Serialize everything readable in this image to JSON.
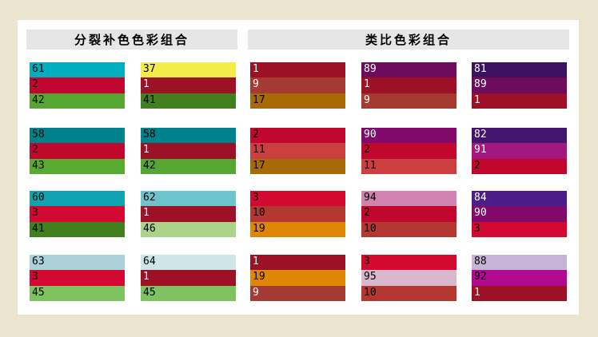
{
  "page": {
    "background_color": "#EBE5D0",
    "panel_color": "#FFFFFF",
    "header_bar_color": "#E6E6E6"
  },
  "sections": [
    {
      "title": "分裂补色色彩组合",
      "columns": 2,
      "groups": [
        {
          "swatches": [
            {
              "num": "61",
              "color": "#00AEC0",
              "text_color": "#000000"
            },
            {
              "num": "2",
              "color": "#C2072E",
              "text_color": "#000000"
            },
            {
              "num": "42",
              "color": "#55A632",
              "text_color": "#000000"
            }
          ]
        },
        {
          "swatches": [
            {
              "num": "37",
              "color": "#F4EC48",
              "text_color": "#000000"
            },
            {
              "num": "1",
              "color": "#9D1127",
              "text_color": "#FFFFFF"
            },
            {
              "num": "41",
              "color": "#41801F",
              "text_color": "#000000"
            }
          ]
        },
        {
          "swatches": [
            {
              "num": "58",
              "color": "#00828C",
              "text_color": "#000000"
            },
            {
              "num": "2",
              "color": "#C2072E",
              "text_color": "#000000"
            },
            {
              "num": "43",
              "color": "#58AB30",
              "text_color": "#000000"
            }
          ]
        },
        {
          "swatches": [
            {
              "num": "58",
              "color": "#00828C",
              "text_color": "#000000"
            },
            {
              "num": "1",
              "color": "#9D1127",
              "text_color": "#FFFFFF"
            },
            {
              "num": "42",
              "color": "#55A632",
              "text_color": "#000000"
            }
          ]
        },
        {
          "swatches": [
            {
              "num": "60",
              "color": "#12A3B2",
              "text_color": "#000000"
            },
            {
              "num": "3",
              "color": "#D40931",
              "text_color": "#000000"
            },
            {
              "num": "41",
              "color": "#41801F",
              "text_color": "#000000"
            }
          ]
        },
        {
          "swatches": [
            {
              "num": "62",
              "color": "#6EC4CC",
              "text_color": "#000000"
            },
            {
              "num": "1",
              "color": "#9D1127",
              "text_color": "#FFFFFF"
            },
            {
              "num": "46",
              "color": "#ABD489",
              "text_color": "#000000"
            }
          ]
        },
        {
          "swatches": [
            {
              "num": "63",
              "color": "#AAD2D8",
              "text_color": "#000000"
            },
            {
              "num": "3",
              "color": "#D40931",
              "text_color": "#000000"
            },
            {
              "num": "45",
              "color": "#7EC35F",
              "text_color": "#000000"
            }
          ]
        },
        {
          "swatches": [
            {
              "num": "64",
              "color": "#D0E5E8",
              "text_color": "#000000"
            },
            {
              "num": "1",
              "color": "#9D1127",
              "text_color": "#FFFFFF"
            },
            {
              "num": "45",
              "color": "#7EC35F",
              "text_color": "#000000"
            }
          ]
        }
      ]
    },
    {
      "title": "类比色彩组合",
      "columns": 3,
      "groups": [
        {
          "swatches": [
            {
              "num": "1",
              "color": "#9D1127",
              "text_color": "#FFFFFF"
            },
            {
              "num": "9",
              "color": "#A43A31",
              "text_color": "#FFFFFF"
            },
            {
              "num": "17",
              "color": "#A76A07",
              "text_color": "#000000"
            }
          ]
        },
        {
          "swatches": [
            {
              "num": "89",
              "color": "#6D0B5C",
              "text_color": "#FFFFFF"
            },
            {
              "num": "1",
              "color": "#9D1127",
              "text_color": "#FFFFFF"
            },
            {
              "num": "9",
              "color": "#A43A31",
              "text_color": "#FFFFFF"
            }
          ]
        },
        {
          "swatches": [
            {
              "num": "81",
              "color": "#3B1161",
              "text_color": "#FFFFFF"
            },
            {
              "num": "89",
              "color": "#6D0B5C",
              "text_color": "#FFFFFF"
            },
            {
              "num": "1",
              "color": "#9D1127",
              "text_color": "#FFFFFF"
            }
          ]
        },
        {
          "swatches": [
            {
              "num": "2",
              "color": "#C2072E",
              "text_color": "#000000"
            },
            {
              "num": "11",
              "color": "#CC3F41",
              "text_color": "#000000"
            },
            {
              "num": "17",
              "color": "#A76A07",
              "text_color": "#000000"
            }
          ]
        },
        {
          "swatches": [
            {
              "num": "90",
              "color": "#82096C",
              "text_color": "#FFFFFF"
            },
            {
              "num": "2",
              "color": "#C2072E",
              "text_color": "#000000"
            },
            {
              "num": "11",
              "color": "#CC3F41",
              "text_color": "#000000"
            }
          ]
        },
        {
          "swatches": [
            {
              "num": "82",
              "color": "#43156E",
              "text_color": "#FFFFFF"
            },
            {
              "num": "91",
              "color": "#A21880",
              "text_color": "#FFFFFF"
            },
            {
              "num": "2",
              "color": "#C2072E",
              "text_color": "#000000"
            }
          ]
        },
        {
          "swatches": [
            {
              "num": "3",
              "color": "#D40931",
              "text_color": "#000000"
            },
            {
              "num": "10",
              "color": "#B43731",
              "text_color": "#000000"
            },
            {
              "num": "19",
              "color": "#DF8607",
              "text_color": "#000000"
            }
          ]
        },
        {
          "swatches": [
            {
              "num": "94",
              "color": "#D083AE",
              "text_color": "#000000"
            },
            {
              "num": "2",
              "color": "#C2072E",
              "text_color": "#000000"
            },
            {
              "num": "10",
              "color": "#B43731",
              "text_color": "#000000"
            }
          ]
        },
        {
          "swatches": [
            {
              "num": "84",
              "color": "#4C1D88",
              "text_color": "#FFFFFF"
            },
            {
              "num": "90",
              "color": "#82096C",
              "text_color": "#FFFFFF"
            },
            {
              "num": "3",
              "color": "#D40931",
              "text_color": "#000000"
            }
          ]
        },
        {
          "swatches": [
            {
              "num": "1",
              "color": "#9D1127",
              "text_color": "#FFFFFF"
            },
            {
              "num": "19",
              "color": "#DF8607",
              "text_color": "#000000"
            },
            {
              "num": "9",
              "color": "#A43A31",
              "text_color": "#FFFFFF"
            }
          ]
        },
        {
          "swatches": [
            {
              "num": "3",
              "color": "#D40931",
              "text_color": "#000000"
            },
            {
              "num": "95",
              "color": "#D9B7CD",
              "text_color": "#000000"
            },
            {
              "num": "10",
              "color": "#B43731",
              "text_color": "#000000"
            }
          ]
        },
        {
          "swatches": [
            {
              "num": "88",
              "color": "#C7B3D5",
              "text_color": "#000000"
            },
            {
              "num": "92",
              "color": "#B30991",
              "text_color": "#000000"
            },
            {
              "num": "1",
              "color": "#9D1127",
              "text_color": "#FFFFFF"
            }
          ]
        }
      ]
    }
  ]
}
